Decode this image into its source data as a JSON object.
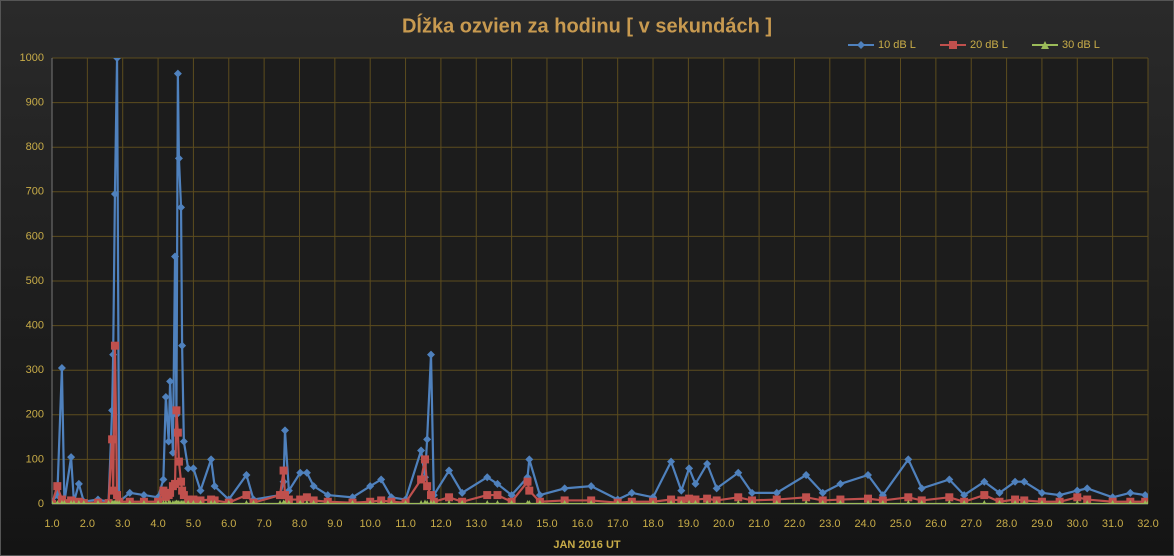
{
  "chart_data": {
    "type": "line",
    "title": "Dĺžka ozvien za hodinu [ v sekundách ]",
    "x_label": "JAN 2016 UT",
    "x": [
      1.0,
      1.15,
      1.28,
      1.35,
      1.54,
      1.62,
      1.76,
      1.9,
      2.3,
      2.6,
      2.7,
      2.73,
      2.78,
      2.84,
      2.9,
      3.2,
      3.6,
      4.0,
      4.15,
      4.22,
      4.3,
      4.34,
      4.42,
      4.48,
      4.52,
      4.56,
      4.59,
      4.65,
      4.68,
      4.73,
      4.85,
      5.0,
      5.2,
      5.5,
      5.6,
      6.0,
      6.5,
      6.7,
      7.45,
      7.55,
      7.59,
      7.7,
      8.02,
      8.21,
      8.4,
      8.8,
      9.5,
      10.0,
      10.31,
      10.6,
      11.0,
      11.44,
      11.55,
      11.61,
      11.72,
      11.8,
      12.23,
      12.6,
      13.31,
      13.6,
      14.0,
      14.45,
      14.5,
      14.8,
      15.5,
      16.25,
      17.0,
      17.4,
      18.0,
      18.51,
      18.8,
      19.02,
      19.2,
      19.53,
      19.8,
      20.41,
      20.8,
      21.5,
      22.33,
      22.8,
      23.3,
      24.08,
      24.5,
      25.22,
      25.6,
      26.38,
      26.8,
      27.37,
      27.8,
      28.24,
      28.5,
      29.0,
      29.5,
      30.0,
      30.28,
      31.0,
      31.5,
      31.92,
      32.0
    ],
    "series": [
      {
        "name": "10 dB L",
        "color": "#4f81bd",
        "marker": "diamond",
        "values": [
          5,
          20,
          305,
          5,
          105,
          5,
          45,
          5,
          10,
          5,
          210,
          335,
          695,
          1000,
          5,
          25,
          20,
          15,
          55,
          240,
          140,
          275,
          115,
          555,
          200,
          965,
          775,
          665,
          355,
          140,
          80,
          80,
          30,
          100,
          40,
          10,
          65,
          10,
          20,
          50,
          165,
          30,
          70,
          70,
          40,
          20,
          15,
          40,
          55,
          15,
          10,
          120,
          60,
          145,
          335,
          20,
          75,
          25,
          60,
          45,
          20,
          60,
          100,
          20,
          35,
          40,
          10,
          25,
          15,
          95,
          30,
          80,
          45,
          90,
          35,
          70,
          25,
          25,
          65,
          25,
          45,
          65,
          20,
          100,
          35,
          55,
          20,
          50,
          25,
          50,
          50,
          25,
          20,
          30,
          35,
          15,
          25,
          20,
          10
        ]
      },
      {
        "name": "20 dB L",
        "color": "#c0504d",
        "marker": "square",
        "values": [
          0,
          40,
          10,
          2,
          8,
          2,
          5,
          2,
          3,
          2,
          145,
          30,
          355,
          20,
          5,
          5,
          5,
          5,
          30,
          15,
          20,
          25,
          40,
          45,
          210,
          160,
          95,
          50,
          30,
          20,
          10,
          10,
          8,
          10,
          8,
          3,
          20,
          3,
          20,
          75,
          20,
          10,
          10,
          15,
          8,
          5,
          3,
          5,
          8,
          5,
          3,
          55,
          100,
          40,
          20,
          5,
          15,
          5,
          20,
          20,
          5,
          50,
          30,
          5,
          8,
          8,
          3,
          5,
          5,
          10,
          8,
          12,
          10,
          12,
          8,
          15,
          8,
          10,
          15,
          8,
          10,
          12,
          8,
          15,
          8,
          15,
          5,
          20,
          5,
          10,
          8,
          5,
          5,
          15,
          10,
          5,
          5,
          5,
          3
        ]
      },
      {
        "name": "30 dB L",
        "color": "#9bbb59",
        "marker": "triangle",
        "values": [
          0,
          0,
          0,
          0,
          0,
          0,
          0,
          0,
          0,
          0,
          0,
          0,
          1,
          0,
          0,
          0,
          0,
          0,
          0,
          0,
          0,
          0,
          0,
          0,
          1,
          0,
          0,
          0,
          0,
          0,
          0,
          0,
          0,
          0,
          0,
          0,
          0,
          0,
          0,
          1,
          0,
          0,
          0,
          0,
          0,
          0,
          0,
          0,
          0,
          0,
          0,
          0,
          1,
          0,
          0,
          0,
          0,
          0,
          0,
          0,
          0,
          0,
          0,
          0,
          0,
          0,
          0,
          0,
          0,
          0,
          0,
          0,
          0,
          0,
          0,
          0,
          0,
          0,
          0,
          0,
          0,
          0,
          0,
          0,
          0,
          0,
          0,
          0,
          0,
          0,
          0,
          0,
          0,
          0,
          0,
          0,
          0,
          0,
          0
        ]
      }
    ],
    "xlim": [
      1,
      32
    ],
    "ylim": [
      0,
      1000
    ],
    "xticks": [
      {
        "value": 1,
        "label": "1.0"
      },
      {
        "value": 2,
        "label": "2.0"
      },
      {
        "value": 3,
        "label": "3.0"
      },
      {
        "value": 4,
        "label": "4.0"
      },
      {
        "value": 5,
        "label": "5.0"
      },
      {
        "value": 6,
        "label": "6.0"
      },
      {
        "value": 7,
        "label": "7.0"
      },
      {
        "value": 8,
        "label": "8.0"
      },
      {
        "value": 9,
        "label": "9.0"
      },
      {
        "value": 10,
        "label": "10.0"
      },
      {
        "value": 11,
        "label": "11.0"
      },
      {
        "value": 12,
        "label": "12.0"
      },
      {
        "value": 13,
        "label": "13.0"
      },
      {
        "value": 14,
        "label": "14.0"
      },
      {
        "value": 15,
        "label": "15.0"
      },
      {
        "value": 16,
        "label": "16.0"
      },
      {
        "value": 17,
        "label": "17.0"
      },
      {
        "value": 18,
        "label": "18.0"
      },
      {
        "value": 19,
        "label": "19.0"
      },
      {
        "value": 20,
        "label": "20.0"
      },
      {
        "value": 21,
        "label": "21.0"
      },
      {
        "value": 22,
        "label": "22.0"
      },
      {
        "value": 23,
        "label": "23.0"
      },
      {
        "value": 24,
        "label": "24.0"
      },
      {
        "value": 25,
        "label": "25.0"
      },
      {
        "value": 26,
        "label": "26.0"
      },
      {
        "value": 27,
        "label": "27.0"
      },
      {
        "value": 28,
        "label": "28.0"
      },
      {
        "value": 29,
        "label": "29.0"
      },
      {
        "value": 30,
        "label": "30.0"
      },
      {
        "value": 31,
        "label": "31.0"
      },
      {
        "value": 32,
        "label": "32.0"
      }
    ],
    "yticks": [
      0,
      100,
      200,
      300,
      400,
      500,
      600,
      700,
      800,
      900,
      1000
    ],
    "grid": true,
    "legend": "top-right"
  }
}
